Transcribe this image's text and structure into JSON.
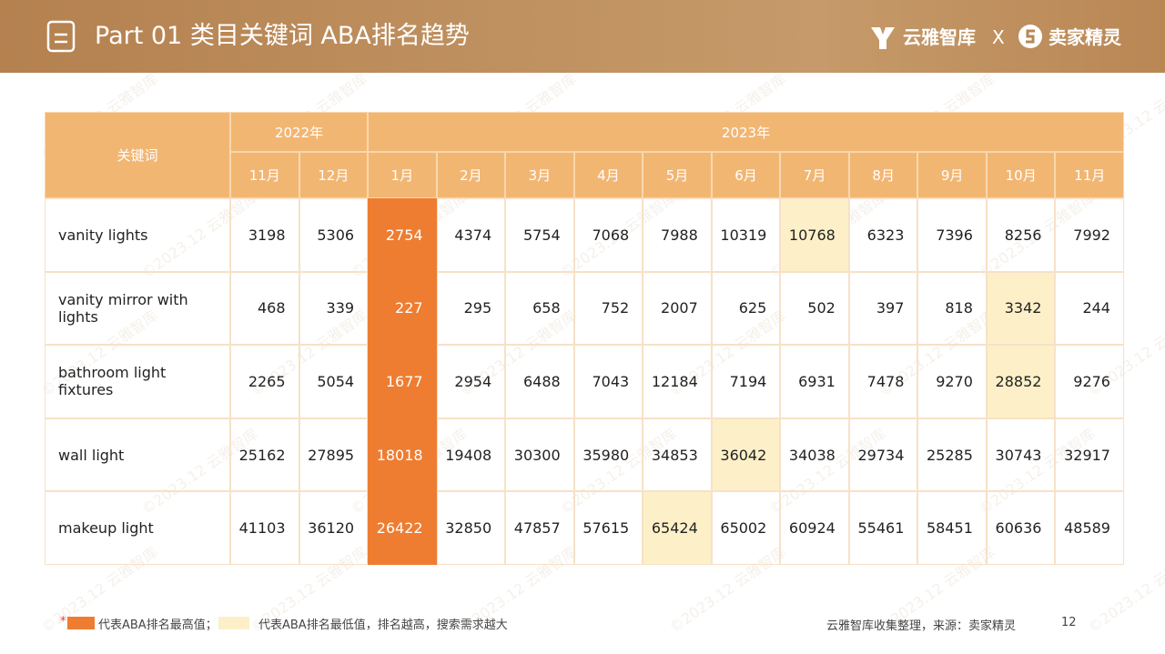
{
  "header": {
    "title": "Part 01 类目关键词 ABA排名趋势",
    "brand_left": "云雅智库",
    "separator": "X",
    "brand_right": "卖家精灵"
  },
  "watermark": "©2023.12 云雅智库",
  "table": {
    "corner": "关键词",
    "years": [
      {
        "label": "2022年",
        "span": 2
      },
      {
        "label": "2023年",
        "span": 11
      }
    ],
    "months": [
      "11月",
      "12月",
      "1月",
      "2月",
      "3月",
      "4月",
      "5月",
      "6月",
      "7月",
      "8月",
      "9月",
      "10月",
      "11月"
    ],
    "rows": [
      {
        "keyword": "vanity lights",
        "values": [
          3198,
          5306,
          2754,
          4374,
          5754,
          7068,
          7988,
          10319,
          10768,
          6323,
          7396,
          8256,
          7992
        ]
      },
      {
        "keyword": "vanity mirror with lights",
        "values": [
          468,
          339,
          227,
          295,
          658,
          752,
          2007,
          625,
          502,
          397,
          818,
          3342,
          244
        ]
      },
      {
        "keyword": "bathroom light fixtures",
        "values": [
          2265,
          5054,
          1677,
          2954,
          6488,
          7043,
          12184,
          7194,
          6931,
          7478,
          9270,
          28852,
          9276
        ]
      },
      {
        "keyword": "wall light",
        "values": [
          25162,
          27895,
          18018,
          19408,
          30300,
          35980,
          34853,
          36042,
          34038,
          29734,
          25285,
          30743,
          32917
        ]
      },
      {
        "keyword": "makeup light",
        "values": [
          41103,
          36120,
          26422,
          32850,
          47857,
          57615,
          65424,
          65002,
          60924,
          55461,
          58451,
          60636,
          48589
        ]
      }
    ],
    "best_color": "#ee7d31",
    "worst_color": "#fdf0c8"
  },
  "legend": {
    "marker": "*",
    "best": "代表ABA排名最高值；",
    "worst": "代表ABA排名最低值，排名越高，搜索需求越大"
  },
  "footer": {
    "source": "云雅智库收集整理，来源：卖家精灵",
    "page": "12"
  }
}
